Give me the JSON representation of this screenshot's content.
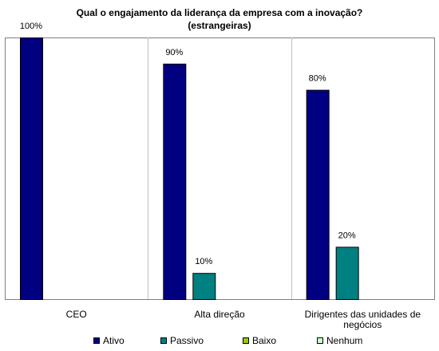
{
  "chart_data": {
    "type": "bar",
    "title": "Qual o engajamento da liderança da empresa com a inovação?",
    "subtitle": "(estrangeiras)",
    "categories": [
      "CEO",
      "Alta direção",
      "Dirigentes das unidades de negócios"
    ],
    "category_label_lines": [
      [
        "CEO"
      ],
      [
        "Alta direção"
      ],
      [
        "Dirigentes das unidades de",
        "negócios"
      ]
    ],
    "ylim": [
      0,
      100
    ],
    "value_suffix": "%",
    "grid": false,
    "legend_position": "bottom",
    "series": [
      {
        "name": "Ativo",
        "values": [
          100,
          90,
          80
        ],
        "color": "#000080"
      },
      {
        "name": "Passivo",
        "values": [
          0,
          10,
          20
        ],
        "color": "#008080"
      },
      {
        "name": "Baixo",
        "values": [
          0,
          0,
          0
        ],
        "color": "#99CC00"
      },
      {
        "name": "Nenhum",
        "values": [
          0,
          0,
          0
        ],
        "color": "#CCFFCC"
      }
    ]
  }
}
